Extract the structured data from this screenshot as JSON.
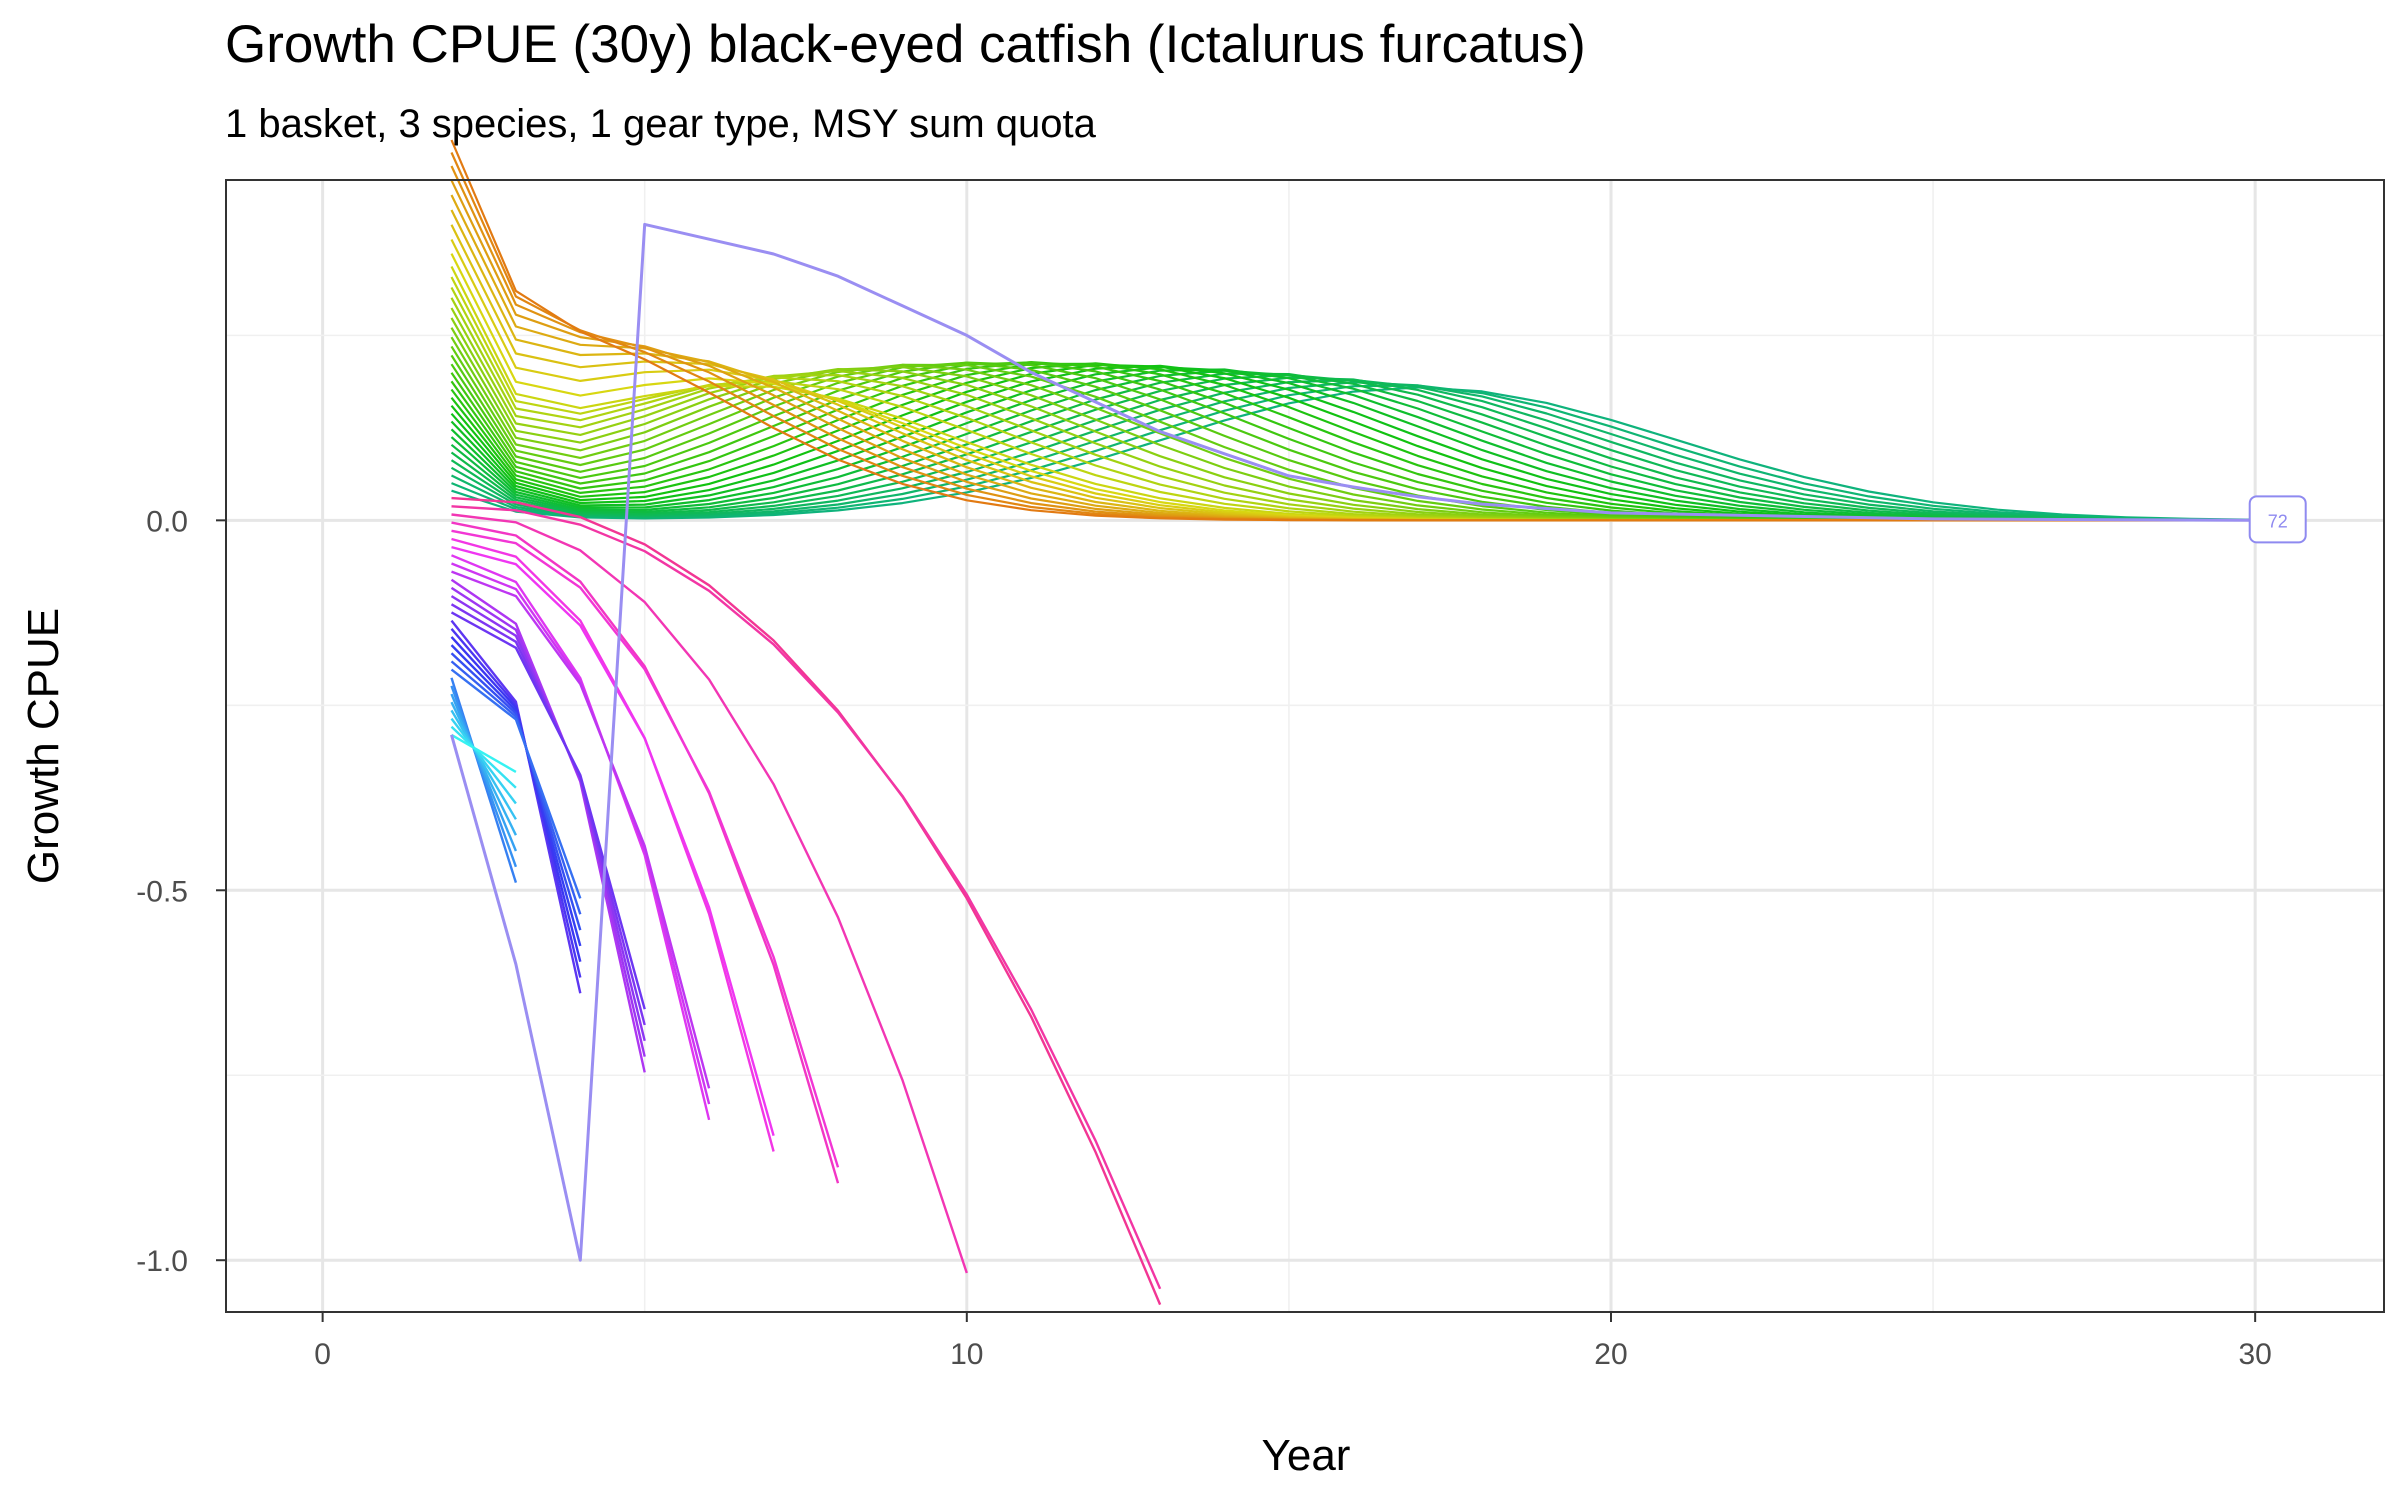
{
  "chart_data": {
    "type": "line",
    "title": "Growth CPUE (30y) black-eyed catfish (Ictalurus furcatus)",
    "subtitle": "1 basket, 3 species, 1 gear type, MSY sum quota",
    "xlabel": "Year",
    "ylabel": "Growth CPUE",
    "xlim": [
      -1.5,
      32
    ],
    "ylim": [
      -1.07,
      0.46
    ],
    "x_ticks": [
      0,
      10,
      20,
      30
    ],
    "x_tick_labels": [
      "0",
      "10",
      "20",
      "30"
    ],
    "y_ticks": [
      0.0,
      -0.5,
      -1.0
    ],
    "y_tick_labels": [
      "0.0",
      "-0.5",
      "-1.0"
    ],
    "grid": true,
    "legend": "none",
    "color_scale": "rainbow hue gradient (teal, blue, purple, pink, orange, olive, green)",
    "end_label": "72",
    "series_groups": {
      "early_starts": {
        "description": "Series starting at year 2 with values between 0.04 and 0.40 and decaying toward 0 by year 30",
        "count": 36,
        "start_year": 2,
        "start_values_range": [
          0.04,
          0.4
        ]
      },
      "collapsing": {
        "description": "Series starting at year 2 below 0 and declining until they end",
        "count": 30,
        "start_year": 2,
        "start_values_range": [
          -0.29,
          0.03
        ],
        "end_years": [
          3,
          4,
          5,
          6,
          7,
          8,
          10,
          13
        ],
        "end_values_range": [
          -0.96,
          -0.34
        ]
      },
      "highlighted": {
        "name": "72",
        "points": [
          [
            2,
            -0.29
          ],
          [
            3,
            -0.6
          ],
          [
            4,
            -1.0
          ],
          [
            5,
            0.4
          ],
          [
            6,
            0.38
          ],
          [
            7,
            0.36
          ],
          [
            8,
            0.33
          ],
          [
            9,
            0.29
          ],
          [
            10,
            0.25
          ],
          [
            11,
            0.2
          ],
          [
            12,
            0.16
          ],
          [
            13,
            0.12
          ],
          [
            14,
            0.09
          ],
          [
            15,
            0.06
          ],
          [
            16,
            0.045
          ],
          [
            17,
            0.032
          ],
          [
            18,
            0.022
          ],
          [
            20,
            0.01
          ],
          [
            25,
            0.002
          ],
          [
            30,
            0.0
          ]
        ]
      }
    }
  }
}
